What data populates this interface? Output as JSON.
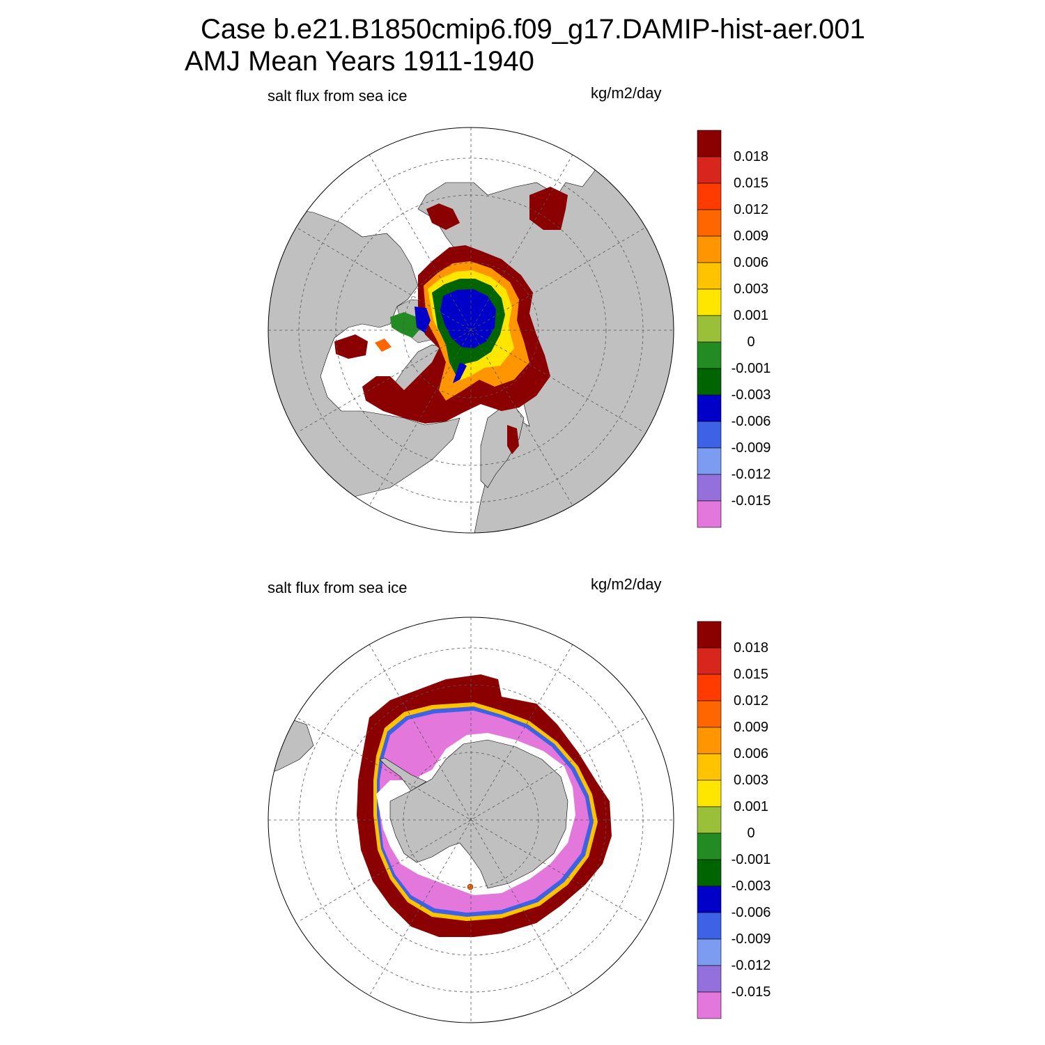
{
  "title": {
    "case": "Case b.e21.B1850cmip6.f09_g17.DAMIP-hist-aer.001",
    "period": "AMJ Mean   Years 1911-1940"
  },
  "panels": [
    {
      "id": "north",
      "variable": "salt flux from sea ice",
      "units": "kg/m2/day",
      "hemisphere": "Northern Hemisphere polar stereographic"
    },
    {
      "id": "south",
      "variable": "salt flux from sea ice",
      "units": "kg/m2/day",
      "hemisphere": "Southern Hemisphere polar stereographic"
    }
  ],
  "colorbar": {
    "labels": [
      "0.018",
      "0.015",
      "0.012",
      "0.009",
      "0.006",
      "0.003",
      "0.001",
      "0",
      "-0.001",
      "-0.003",
      "-0.006",
      "-0.009",
      "-0.012",
      "-0.015"
    ],
    "colors": [
      "#8b0000",
      "#d9261c",
      "#ff3b00",
      "#ff6600",
      "#ff9500",
      "#ffc300",
      "#ffe600",
      "#99c038",
      "#228b22",
      "#006400",
      "#0000c8",
      "#3e62e6",
      "#7b9cf0",
      "#9370db",
      "#e377db"
    ]
  },
  "colors": {
    "land": "#c0c0c0",
    "ocean_no_ice": "#ffffff",
    "grid": "#555555"
  },
  "chart_data": [
    {
      "type": "heatmap",
      "title": "salt flux from sea ice",
      "units": "kg/m2/day",
      "hemisphere": "north",
      "contour_levels": [
        -0.015,
        -0.012,
        -0.009,
        -0.006,
        -0.003,
        -0.001,
        0,
        0.001,
        0.003,
        0.006,
        0.009,
        0.012,
        0.015,
        0.018
      ],
      "description_values": {
        "central_arctic": -0.006,
        "ice_edge": 0.018
      }
    },
    {
      "type": "heatmap",
      "title": "salt flux from sea ice",
      "units": "kg/m2/day",
      "hemisphere": "south",
      "contour_levels": [
        -0.015,
        -0.012,
        -0.009,
        -0.006,
        -0.003,
        -0.001,
        0,
        0.001,
        0.003,
        0.006,
        0.009,
        0.012,
        0.015,
        0.018
      ],
      "description_values": {
        "pack_ice": -0.015,
        "ice_edge": 0.018
      }
    }
  ]
}
